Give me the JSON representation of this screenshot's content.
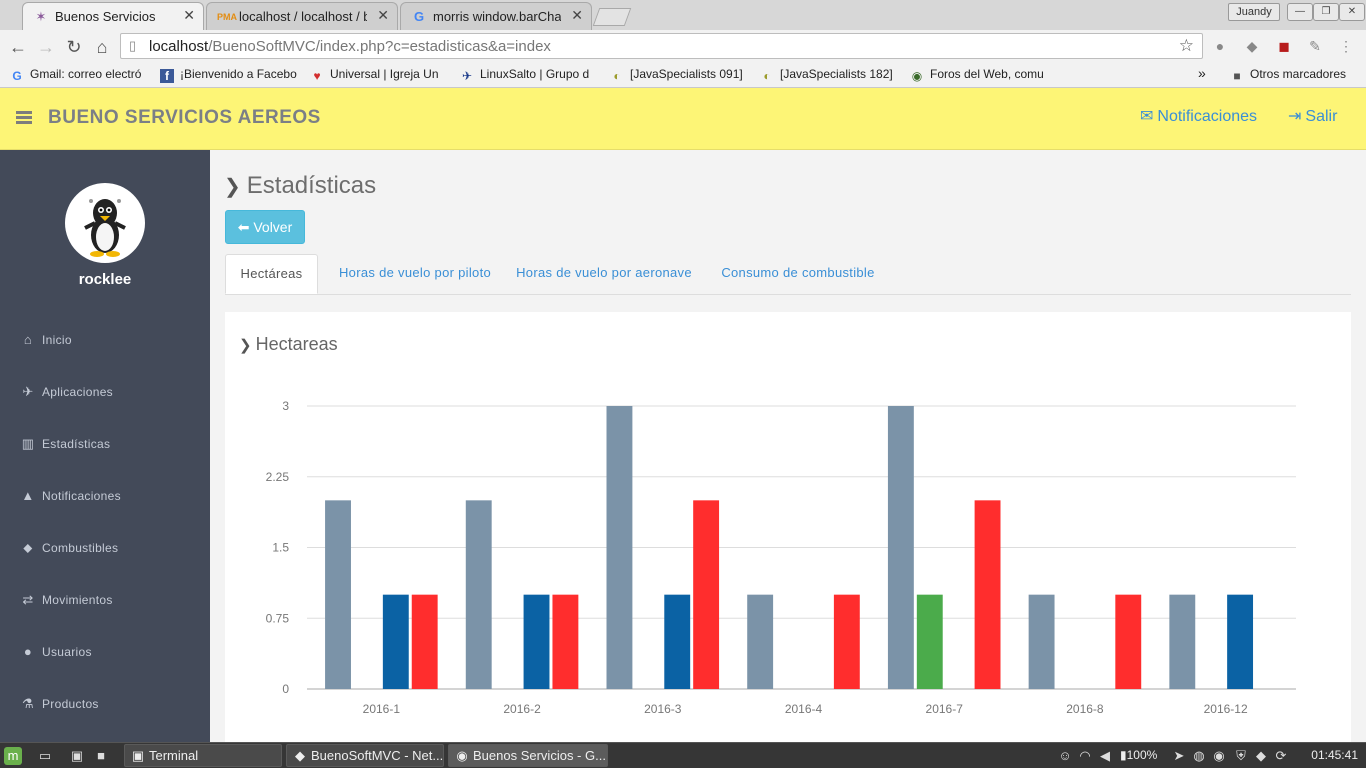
{
  "browser": {
    "tabs": [
      {
        "title": "Buenos Servicios",
        "icon": "bird-favicon",
        "active": true
      },
      {
        "title": "localhost / localhost / bu",
        "icon": "phpmyadmin-favicon",
        "active": false
      },
      {
        "title": "morris window.barChar",
        "icon": "google-favicon",
        "active": false
      }
    ],
    "profile": "Juandy",
    "url_host": "localhost",
    "url_path": "/BuenoSoftMVC/index.php?c=estadisticas&a=index",
    "bookmarks": [
      {
        "label": "Gmail: correo electró",
        "icon": "G"
      },
      {
        "label": "¡Bienvenido a Facebo",
        "icon": "f"
      },
      {
        "label": "Universal | Igreja Un",
        "icon": "♥"
      },
      {
        "label": "LinuxSalto | Grupo d",
        "icon": "✈"
      },
      {
        "label": "[JavaSpecialists 091]",
        "icon": "◐"
      },
      {
        "label": "[JavaSpecialists 182]",
        "icon": "◐"
      },
      {
        "label": "Foros del Web, comu",
        "icon": "◉"
      }
    ],
    "bookmarks_more": "»",
    "other_bookmarks": "Otros marcadores"
  },
  "header": {
    "brand": "BUENO SERVICIOS AEREOS",
    "notifications_label": "Notificaciones",
    "logout_label": "Salir"
  },
  "sidebar": {
    "username": "rocklee",
    "items": [
      {
        "label": "Inicio",
        "icon": "home-icon",
        "glyph": "⌂"
      },
      {
        "label": "Aplicaciones",
        "icon": "plane-icon",
        "glyph": "✈"
      },
      {
        "label": "Estadísticas",
        "icon": "bar-chart-icon",
        "glyph": "▥"
      },
      {
        "label": "Notificaciones",
        "icon": "warning-icon",
        "glyph": "▲"
      },
      {
        "label": "Combustibles",
        "icon": "tint-icon",
        "glyph": "⬥"
      },
      {
        "label": "Movimientos",
        "icon": "retweet-icon",
        "glyph": "⇄"
      },
      {
        "label": "Usuarios",
        "icon": "users-icon",
        "glyph": "●"
      },
      {
        "label": "Productos",
        "icon": "flask-icon",
        "glyph": "⚗"
      }
    ]
  },
  "main": {
    "title": "Estadísticas",
    "back_label": "Volver",
    "tabs": [
      {
        "label": "Hectáreas",
        "active": true
      },
      {
        "label": "Horas de vuelo por piloto",
        "active": false
      },
      {
        "label": "Horas de vuelo por aeronave",
        "active": false
      },
      {
        "label": "Consumo de combustible",
        "active": false
      }
    ],
    "panel_title": "Hectareas"
  },
  "chart_data": {
    "type": "bar",
    "title": "",
    "xlabel": "",
    "ylabel": "",
    "ylim": [
      0,
      3
    ],
    "yticks": [
      "0",
      "0.75",
      "1.5",
      "2.25",
      "3"
    ],
    "grid": true,
    "categories": [
      "2016-1",
      "2016-2",
      "2016-3",
      "2016-4",
      "2016-7",
      "2016-8",
      "2016-12"
    ],
    "series": [
      {
        "color": "#7b93a8",
        "values": [
          2,
          2,
          3,
          1,
          3,
          1,
          1
        ]
      },
      {
        "color": "#4bab4b",
        "values": [
          0,
          0,
          0,
          0,
          1,
          0,
          0
        ]
      },
      {
        "color": "#0b62a4",
        "values": [
          1,
          1,
          1,
          0,
          0,
          0,
          1
        ]
      },
      {
        "color": "#ff2d2d",
        "values": [
          1,
          1,
          2,
          1,
          2,
          1,
          0
        ]
      }
    ]
  },
  "taskbar": {
    "tasks": [
      {
        "label": "Terminal",
        "icon": "terminal-icon"
      },
      {
        "label": "BuenoSoftMVC - Net...",
        "icon": "netbeans-icon"
      },
      {
        "label": "Buenos Servicios - G...",
        "icon": "chrome-icon"
      }
    ],
    "battery": "100%",
    "clock": "01:45:41"
  }
}
